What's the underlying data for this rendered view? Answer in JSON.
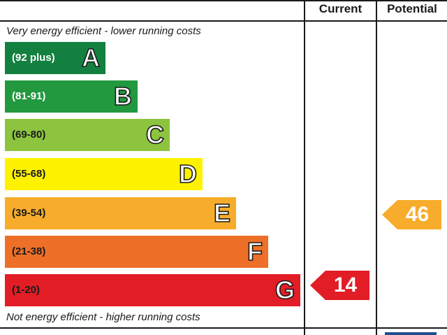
{
  "headers": {
    "current": "Current",
    "potential": "Potential"
  },
  "notes": {
    "top": "Very energy efficient - lower running costs",
    "bottom": "Not energy efficient - higher running costs"
  },
  "bands": [
    {
      "range": "(92 plus)",
      "letter": "A",
      "color": "#138040"
    },
    {
      "range": "(81-91)",
      "letter": "B",
      "color": "#22983f"
    },
    {
      "range": "(69-80)",
      "letter": "C",
      "color": "#8cc43f"
    },
    {
      "range": "(55-68)",
      "letter": "D",
      "color": "#fff200"
    },
    {
      "range": "(39-54)",
      "letter": "E",
      "color": "#f7ad2b"
    },
    {
      "range": "(21-38)",
      "letter": "F",
      "color": "#ee6f28"
    },
    {
      "range": "(1-20)",
      "letter": "G",
      "color": "#e21d26"
    }
  ],
  "ratings": {
    "current": {
      "value": "14",
      "band": "G",
      "color": "#e21d26"
    },
    "potential": {
      "value": "46",
      "band": "E",
      "color": "#f7ad2b"
    }
  }
}
